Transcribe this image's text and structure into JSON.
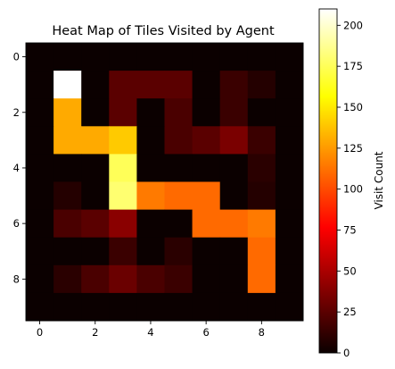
{
  "chart_data": {
    "type": "heatmap",
    "title": "Heat Map of Tiles Visited by Agent",
    "colormap": "hot",
    "colorbar_label": "Visit Count",
    "vmin": 0,
    "vmax": 210,
    "x_ticks": [
      0,
      2,
      4,
      6,
      8
    ],
    "y_ticks": [
      0,
      2,
      4,
      6,
      8
    ],
    "colorbar_ticks": [
      0,
      25,
      50,
      75,
      100,
      125,
      150,
      175,
      200
    ],
    "matrix": [
      [
        0,
        0,
        0,
        0,
        0,
        0,
        0,
        0,
        0,
        0
      ],
      [
        0,
        210,
        0,
        25,
        25,
        25,
        0,
        15,
        8,
        0
      ],
      [
        0,
        130,
        0,
        25,
        0,
        20,
        0,
        15,
        0,
        0
      ],
      [
        0,
        130,
        130,
        140,
        0,
        20,
        25,
        35,
        15,
        0
      ],
      [
        0,
        0,
        0,
        175,
        0,
        0,
        0,
        0,
        10,
        0
      ],
      [
        0,
        8,
        0,
        180,
        115,
        110,
        110,
        0,
        8,
        0
      ],
      [
        0,
        20,
        25,
        40,
        0,
        0,
        110,
        110,
        115,
        0
      ],
      [
        0,
        0,
        0,
        15,
        0,
        10,
        0,
        0,
        110,
        0
      ],
      [
        0,
        10,
        20,
        30,
        20,
        15,
        0,
        0,
        110,
        0
      ],
      [
        0,
        0,
        0,
        0,
        0,
        0,
        0,
        0,
        0,
        0
      ]
    ]
  }
}
